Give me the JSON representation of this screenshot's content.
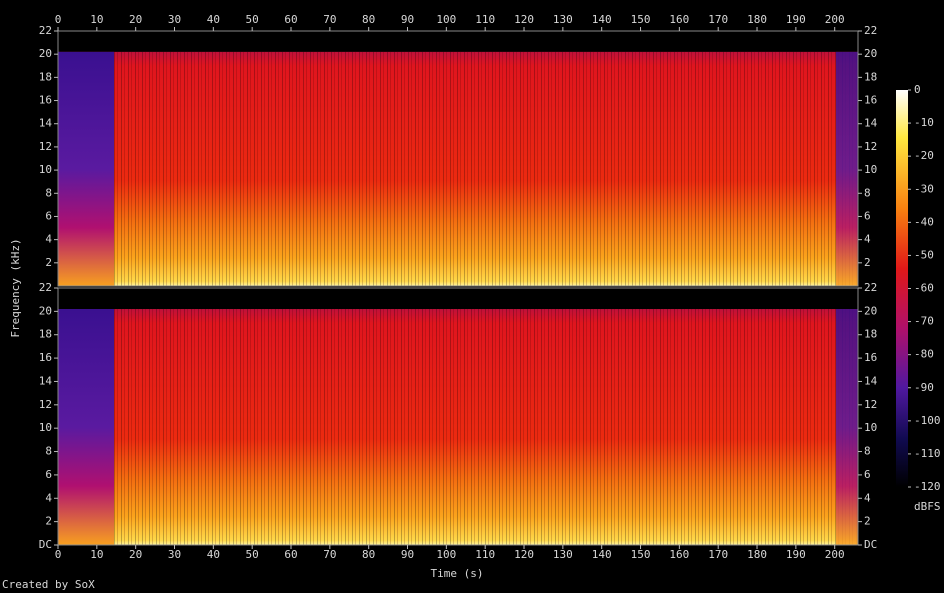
{
  "chart_data": {
    "type": "spectrogram",
    "xlabel": "Time (s)",
    "ylabel": "Frequency (kHz)",
    "xlim": [
      0,
      206
    ],
    "xticks": [
      0,
      10,
      20,
      30,
      40,
      50,
      60,
      70,
      80,
      90,
      100,
      110,
      120,
      130,
      140,
      150,
      160,
      170,
      180,
      190,
      200
    ],
    "channels": [
      {
        "ylim": [
          0,
          22
        ],
        "yticks": [
          2,
          4,
          6,
          8,
          10,
          12,
          14,
          16,
          18,
          20,
          22
        ]
      },
      {
        "ylim": [
          0,
          22
        ],
        "yticks": [
          {
            "value": 0,
            "label": "DC"
          },
          2,
          4,
          6,
          8,
          10,
          12,
          14,
          16,
          18,
          20,
          22
        ]
      }
    ],
    "colorbar": {
      "label": "dBFS",
      "clim": [
        -120,
        0
      ],
      "ticks": [
        0,
        -10,
        -20,
        -30,
        -40,
        -50,
        -60,
        -70,
        -80,
        -90,
        -100,
        -110,
        -120
      ]
    },
    "footer": "Created by SoX"
  }
}
